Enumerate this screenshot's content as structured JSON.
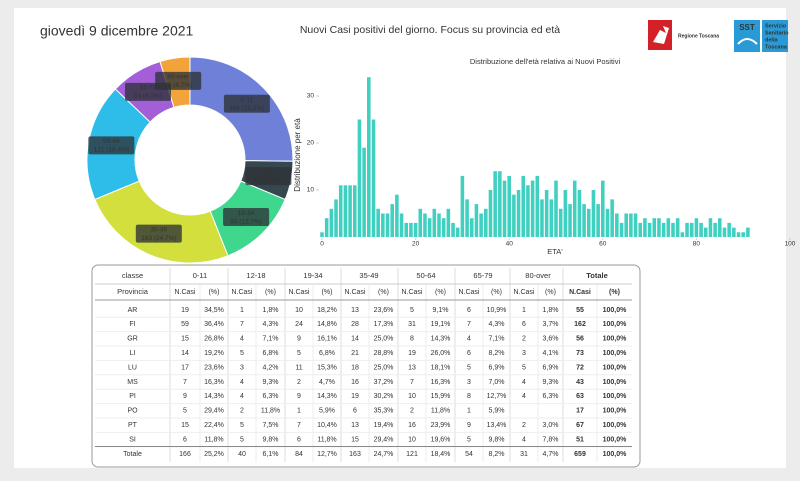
{
  "header": {
    "date": "giovedì 9 dicembre 2021",
    "title": "Nuovi Casi positivi del giorno. Focus su provincia ed età"
  },
  "logos": {
    "region": "Regione Toscana",
    "sst": "SST",
    "sst_lines": [
      "Servizio",
      "Sanitario",
      "della",
      "Toscana"
    ]
  },
  "chart_data": [
    {
      "type": "pie",
      "categories": [
        "0-11",
        "12-18",
        "19-34",
        "35-49",
        "50-64",
        "65-79",
        "80-over"
      ],
      "values": [
        166,
        40,
        84,
        163,
        121,
        54,
        31
      ],
      "value_labels": [
        "166 (25,2%)",
        "40 (6,1%)",
        "84 (12,7%)",
        "163 (24,7%)",
        "121 (18,4%)",
        "54 (8,2%)",
        "31 (4,7%)"
      ],
      "colors": [
        "#6f80d8",
        "#36474f",
        "#3fd68e",
        "#d3df3c",
        "#2dbde8",
        "#a25fd8",
        "#f2a33a"
      ]
    },
    {
      "type": "bar",
      "title": "Distribuzione dell'età relativa ai Nuovi Positivi",
      "y_label": "Distribuzione per età",
      "x_label": "ETA'",
      "color": "#3fd0c0",
      "x": [
        0,
        1,
        2,
        3,
        4,
        5,
        6,
        7,
        8,
        9,
        10,
        11,
        12,
        13,
        14,
        15,
        16,
        17,
        18,
        19,
        20,
        21,
        22,
        23,
        24,
        25,
        26,
        27,
        28,
        29,
        30,
        31,
        32,
        33,
        34,
        35,
        36,
        37,
        38,
        39,
        40,
        41,
        42,
        43,
        44,
        45,
        46,
        47,
        48,
        49,
        50,
        51,
        52,
        53,
        54,
        55,
        56,
        57,
        58,
        59,
        60,
        61,
        62,
        63,
        64,
        65,
        66,
        67,
        68,
        69,
        70,
        71,
        72,
        73,
        74,
        75,
        76,
        77,
        78,
        79,
        80,
        81,
        82,
        83,
        84,
        85,
        86,
        87,
        88,
        89,
        90,
        91
      ],
      "values": [
        1,
        4,
        6,
        8,
        11,
        11,
        11,
        11,
        25,
        19,
        34,
        25,
        6,
        5,
        5,
        7,
        9,
        5,
        3,
        3,
        3,
        6,
        5,
        4,
        6,
        5,
        4,
        6,
        3,
        2,
        13,
        8,
        4,
        7,
        5,
        6,
        10,
        14,
        14,
        12,
        13,
        9,
        10,
        13,
        11,
        12,
        13,
        8,
        10,
        8,
        12,
        6,
        10,
        7,
        12,
        10,
        7,
        6,
        10,
        7,
        12,
        6,
        8,
        5,
        3,
        5,
        5,
        5,
        3,
        4,
        3,
        4,
        4,
        3,
        4,
        3,
        4,
        1,
        3,
        3,
        4,
        3,
        2,
        4,
        3,
        4,
        2,
        3,
        2,
        1,
        1,
        2
      ],
      "xlim": [
        0,
        100
      ],
      "ylim": [
        0,
        35
      ],
      "xticks": [
        0,
        20,
        40,
        60,
        80,
        100
      ],
      "yticks": [
        10,
        20,
        30
      ],
      "grid": false
    }
  ],
  "table": {
    "corner": "classe",
    "row_header": "Provincia",
    "groups": [
      "0-11",
      "12-18",
      "19-34",
      "35-49",
      "50-64",
      "65-79",
      "80-over",
      "Totale"
    ],
    "subcolumns": [
      "N.Casi",
      "(%)"
    ],
    "rows": [
      {
        "name": "AR",
        "cells": [
          19,
          "34,5%",
          1,
          "1,8%",
          10,
          "18,2%",
          13,
          "23,6%",
          5,
          "9,1%",
          6,
          "10,9%",
          1,
          "1,8%",
          55,
          "100,0%"
        ]
      },
      {
        "name": "FI",
        "cells": [
          59,
          "36,4%",
          7,
          "4,3%",
          24,
          "14,8%",
          28,
          "17,3%",
          31,
          "19,1%",
          7,
          "4,3%",
          6,
          "3,7%",
          162,
          "100,0%"
        ]
      },
      {
        "name": "GR",
        "cells": [
          15,
          "26,8%",
          4,
          "7,1%",
          9,
          "16,1%",
          14,
          "25,0%",
          8,
          "14,3%",
          4,
          "7,1%",
          2,
          "3,6%",
          56,
          "100,0%"
        ]
      },
      {
        "name": "LI",
        "cells": [
          14,
          "19,2%",
          5,
          "6,8%",
          5,
          "6,8%",
          21,
          "28,8%",
          19,
          "26,0%",
          6,
          "8,2%",
          3,
          "4,1%",
          73,
          "100,0%"
        ]
      },
      {
        "name": "LU",
        "cells": [
          17,
          "23,6%",
          3,
          "4,2%",
          11,
          "15,3%",
          18,
          "25,0%",
          13,
          "18,1%",
          5,
          "6,9%",
          5,
          "6,9%",
          72,
          "100,0%"
        ]
      },
      {
        "name": "MS",
        "cells": [
          7,
          "16,3%",
          4,
          "9,3%",
          2,
          "4,7%",
          16,
          "37,2%",
          7,
          "16,3%",
          3,
          "7,0%",
          4,
          "9,3%",
          43,
          "100,0%"
        ]
      },
      {
        "name": "PI",
        "cells": [
          9,
          "14,3%",
          4,
          "6,3%",
          9,
          "14,3%",
          19,
          "30,2%",
          10,
          "15,9%",
          8,
          "12,7%",
          4,
          "6,3%",
          63,
          "100,0%"
        ]
      },
      {
        "name": "PO",
        "cells": [
          5,
          "29,4%",
          2,
          "11,8%",
          1,
          "5,9%",
          6,
          "35,3%",
          2,
          "11,8%",
          1,
          "5,9%",
          null,
          null,
          17,
          "100,0%"
        ]
      },
      {
        "name": "PT",
        "cells": [
          15,
          "22,4%",
          5,
          "7,5%",
          7,
          "10,4%",
          13,
          "19,4%",
          16,
          "23,9%",
          9,
          "13,4%",
          2,
          "3,0%",
          67,
          "100,0%"
        ]
      },
      {
        "name": "SI",
        "cells": [
          6,
          "11,8%",
          5,
          "9,8%",
          6,
          "11,8%",
          15,
          "29,4%",
          10,
          "19,6%",
          5,
          "9,8%",
          4,
          "7,8%",
          51,
          "100,0%"
        ]
      },
      {
        "name": "Totale",
        "cells": [
          166,
          "25,2%",
          40,
          "6,1%",
          84,
          "12,7%",
          163,
          "24,7%",
          121,
          "18,4%",
          54,
          "8,2%",
          31,
          "4,7%",
          659,
          "100,0%"
        ]
      }
    ]
  }
}
